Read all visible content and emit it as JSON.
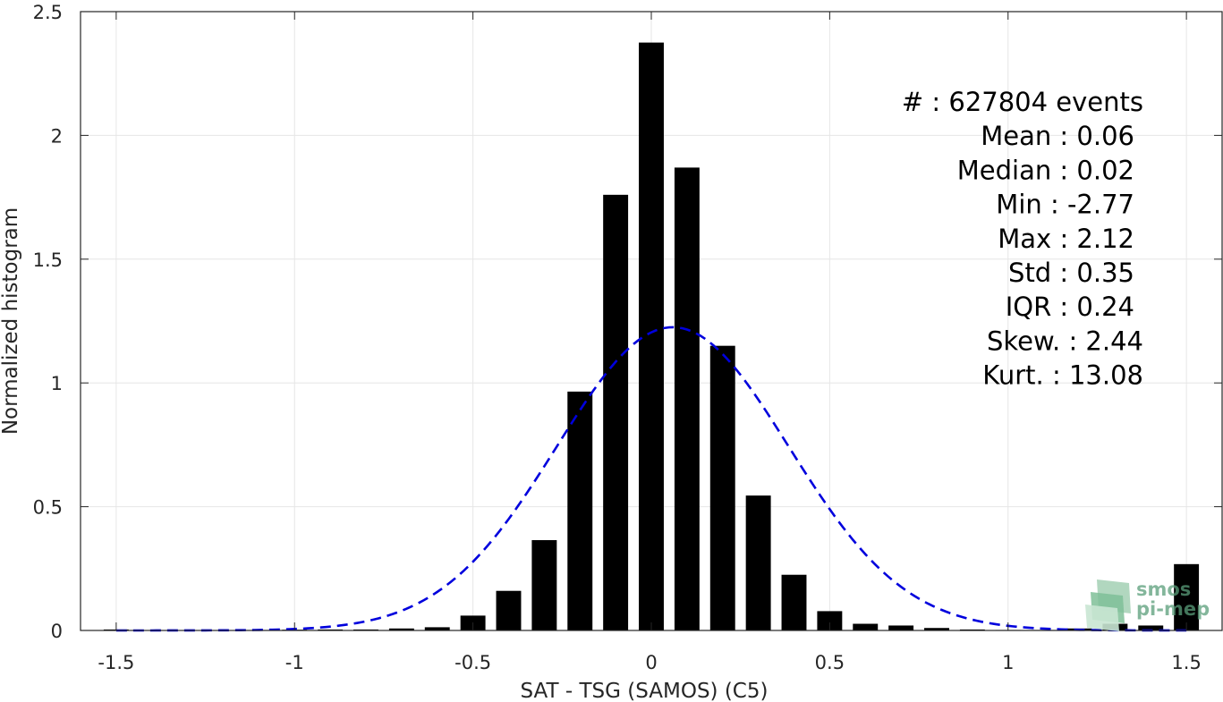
{
  "chart_data": {
    "type": "bar",
    "xlabel": "SAT - TSG (SAMOS) (C5)",
    "ylabel": "Normalized histogram",
    "xlim": [
      -1.6,
      1.6
    ],
    "ylim": [
      0,
      2.5
    ],
    "x_ticks": [
      -1.5,
      -1,
      -0.5,
      0,
      0.5,
      1,
      1.5
    ],
    "x_tick_labels": [
      "-1.5",
      "-1",
      "-0.5",
      "0",
      "0.5",
      "1",
      "1.5"
    ],
    "y_ticks": [
      0,
      0.5,
      1,
      1.5,
      2,
      2.5
    ],
    "y_tick_labels": [
      "0",
      "0.5",
      "1",
      "1.5",
      "2",
      "2.5"
    ],
    "grid": true,
    "bar_width": 0.07,
    "bar_color": "#000000",
    "series": [
      {
        "values": [
          {
            "x": -1.5,
            "y": 0.004
          },
          {
            "x": -1.4,
            "y": 0.001
          },
          {
            "x": -1.3,
            "y": 0.001
          },
          {
            "x": -1.2,
            "y": 0.001
          },
          {
            "x": -1.1,
            "y": 0.002
          },
          {
            "x": -1.0,
            "y": 0.003
          },
          {
            "x": -0.9,
            "y": 0.004
          },
          {
            "x": -0.8,
            "y": 0.004
          },
          {
            "x": -0.7,
            "y": 0.008
          },
          {
            "x": -0.6,
            "y": 0.013
          },
          {
            "x": -0.5,
            "y": 0.06
          },
          {
            "x": -0.4,
            "y": 0.16
          },
          {
            "x": -0.3,
            "y": 0.365
          },
          {
            "x": -0.2,
            "y": 0.965
          },
          {
            "x": -0.1,
            "y": 1.76
          },
          {
            "x": 0.0,
            "y": 2.375
          },
          {
            "x": 0.1,
            "y": 1.87
          },
          {
            "x": 0.2,
            "y": 1.15
          },
          {
            "x": 0.3,
            "y": 0.545
          },
          {
            "x": 0.4,
            "y": 0.225
          },
          {
            "x": 0.5,
            "y": 0.078
          },
          {
            "x": 0.6,
            "y": 0.027
          },
          {
            "x": 0.7,
            "y": 0.02
          },
          {
            "x": 0.8,
            "y": 0.01
          },
          {
            "x": 0.9,
            "y": 0.004
          },
          {
            "x": 1.0,
            "y": 0.002
          },
          {
            "x": 1.1,
            "y": 0.002
          },
          {
            "x": 1.2,
            "y": 0.008
          },
          {
            "x": 1.3,
            "y": 0.027
          },
          {
            "x": 1.4,
            "y": 0.02
          },
          {
            "x": 1.5,
            "y": 0.268
          }
        ]
      }
    ],
    "fit_curve": {
      "type": "gaussian",
      "style": "dashed",
      "color": "#0000dd",
      "mean": 0.06,
      "std": 0.325,
      "peak": 1.225
    },
    "stats": [
      {
        "label": "#  ",
        "value": ": 627804 events"
      },
      {
        "label": "Mean",
        "value": ": 0.06"
      },
      {
        "label": "Median",
        "value": ": 0.02"
      },
      {
        "label": "Min",
        "value": ": -2.77"
      },
      {
        "label": "Max",
        "value": ": 2.12"
      },
      {
        "label": "Std",
        "value": ": 0.35"
      },
      {
        "label": "IQR",
        "value": ": 0.24"
      },
      {
        "label": "Skew.",
        "value": ": 2.44"
      },
      {
        "label": "Kurt.",
        "value": ": 13.08"
      }
    ]
  },
  "logo": {
    "line1": "smos",
    "line2": "pi-mep",
    "color": "#5a9e7a"
  }
}
